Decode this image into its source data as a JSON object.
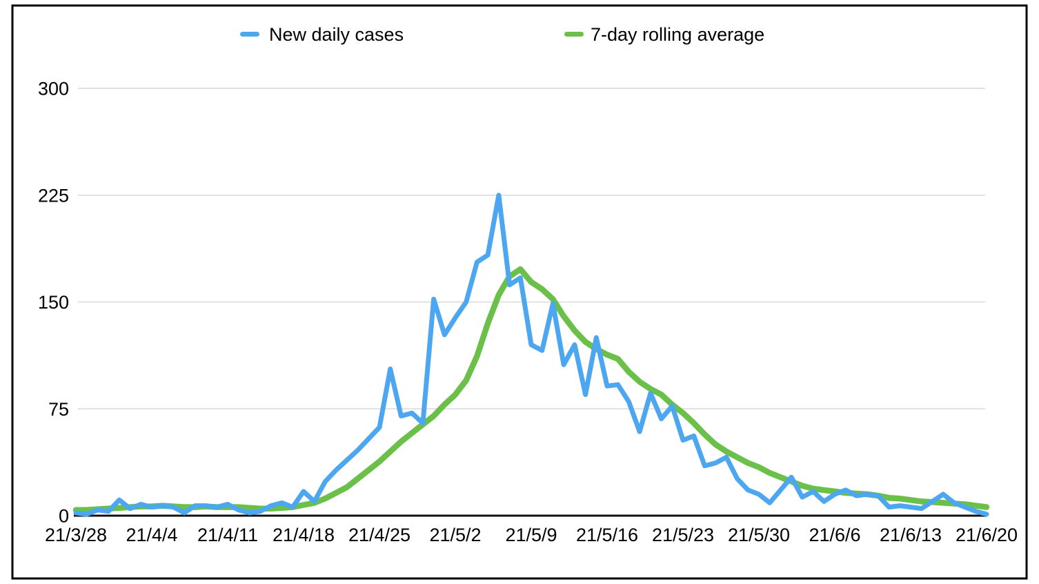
{
  "chart_data": {
    "type": "line",
    "title": "",
    "xlabel": "",
    "ylabel": "",
    "ylim": [
      0,
      300
    ],
    "y_ticks": [
      0,
      75,
      150,
      225,
      300
    ],
    "grid": "horizontal",
    "legend_position": "top",
    "x_tick_labels": [
      "21/3/28",
      "21/4/4",
      "21/4/11",
      "21/4/18",
      "21/4/25",
      "21/5/2",
      "21/5/9",
      "21/5/16",
      "21/5/23",
      "21/5/30",
      "21/6/6",
      "21/6/13",
      "21/6/20"
    ],
    "x_dates": [
      "21/3/28",
      "21/3/29",
      "21/3/30",
      "21/3/31",
      "21/4/1",
      "21/4/2",
      "21/4/3",
      "21/4/4",
      "21/4/5",
      "21/4/6",
      "21/4/7",
      "21/4/8",
      "21/4/9",
      "21/4/10",
      "21/4/11",
      "21/4/12",
      "21/4/13",
      "21/4/14",
      "21/4/15",
      "21/4/16",
      "21/4/17",
      "21/4/18",
      "21/4/19",
      "21/4/20",
      "21/4/21",
      "21/4/22",
      "21/4/23",
      "21/4/24",
      "21/4/25",
      "21/4/26",
      "21/4/27",
      "21/4/28",
      "21/4/29",
      "21/4/30",
      "21/5/1",
      "21/5/2",
      "21/5/3",
      "21/5/4",
      "21/5/5",
      "21/5/6",
      "21/5/7",
      "21/5/8",
      "21/5/9",
      "21/5/10",
      "21/5/11",
      "21/5/12",
      "21/5/13",
      "21/5/14",
      "21/5/15",
      "21/5/16",
      "21/5/17",
      "21/5/18",
      "21/5/19",
      "21/5/20",
      "21/5/21",
      "21/5/22",
      "21/5/23",
      "21/5/24",
      "21/5/25",
      "21/5/26",
      "21/5/27",
      "21/5/28",
      "21/5/29",
      "21/5/30",
      "21/5/31",
      "21/6/1",
      "21/6/2",
      "21/6/3",
      "21/6/4",
      "21/6/5",
      "21/6/6",
      "21/6/7",
      "21/6/8",
      "21/6/9",
      "21/6/10",
      "21/6/11",
      "21/6/12",
      "21/6/13",
      "21/6/14",
      "21/6/15",
      "21/6/16",
      "21/6/17",
      "21/6/18",
      "21/6/19",
      "21/6/20"
    ],
    "series": [
      {
        "name": "New daily cases",
        "color": "#4DA6F0",
        "width": 7,
        "values": [
          2,
          1,
          4,
          3,
          11,
          5,
          8,
          6,
          7,
          6,
          2,
          7,
          7,
          6,
          8,
          4,
          2,
          3,
          7,
          9,
          6,
          17,
          10,
          24,
          32,
          39,
          46,
          54,
          62,
          103,
          70,
          72,
          65,
          152,
          127,
          139,
          150,
          178,
          183,
          225,
          162,
          167,
          120,
          116,
          149,
          106,
          120,
          85,
          125,
          91,
          92,
          80,
          59,
          86,
          68,
          77,
          53,
          56,
          35,
          37,
          41,
          26,
          18,
          15,
          9,
          18,
          27,
          13,
          17,
          10,
          15,
          18,
          14,
          15,
          14,
          6,
          7,
          6,
          5,
          10,
          15,
          9,
          6,
          3,
          1
        ]
      },
      {
        "name": "7-day rolling average",
        "color": "#6BC04A",
        "width": 8.5,
        "values": [
          4,
          4,
          4.5,
          5,
          5.5,
          6,
          6.5,
          6.5,
          7,
          6.5,
          6,
          6,
          6.5,
          6,
          6,
          6,
          5.5,
          5,
          5,
          5.5,
          6,
          7.5,
          9,
          12,
          16,
          20,
          26,
          32,
          38,
          45,
          52,
          58,
          64,
          70,
          78,
          85,
          95,
          112,
          135,
          155,
          168,
          173,
          164,
          159,
          152,
          140,
          130,
          122,
          117,
          113,
          110,
          101,
          94,
          89,
          85,
          78,
          72,
          65,
          57,
          50,
          45,
          41,
          37,
          34,
          30,
          27,
          24,
          21,
          19,
          18,
          17,
          16,
          15.5,
          15,
          14,
          12.5,
          12,
          11,
          10,
          9.5,
          9,
          8.5,
          8,
          7,
          6
        ]
      }
    ]
  },
  "frame": {
    "background": "#ffffff",
    "border_color": "#000000",
    "gridline_color": "#d9d9d9",
    "axis_line_color": "#111111",
    "text_color": "#000000"
  }
}
